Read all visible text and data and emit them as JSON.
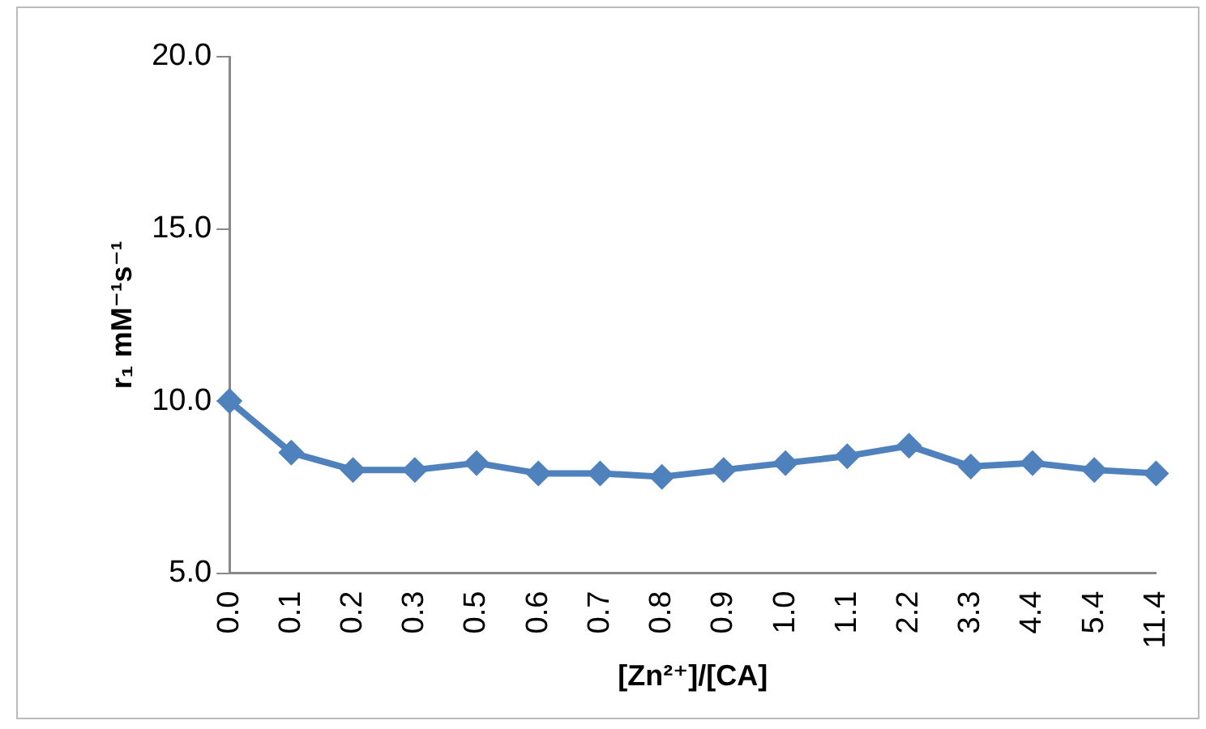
{
  "chart_data": {
    "type": "line",
    "xlabel": "[Zn²⁺]/[CA]",
    "ylabel": "r₁ mM⁻¹s⁻¹",
    "categories": [
      "0.0",
      "0.1",
      "0.2",
      "0.3",
      "0.5",
      "0.6",
      "0.7",
      "0.8",
      "0.9",
      "1.0",
      "1.1",
      "2.2",
      "3.3",
      "4.4",
      "5.4",
      "11.4"
    ],
    "series": [
      {
        "color": "#4f81bd",
        "values": [
          10.0,
          8.5,
          8.0,
          8.0,
          8.2,
          7.9,
          7.9,
          7.8,
          8.0,
          8.2,
          8.4,
          8.7,
          8.1,
          8.2,
          8.0,
          7.9
        ]
      }
    ],
    "ylim": [
      5,
      20
    ],
    "yticks": [
      {
        "value": 5,
        "label": "5.0"
      },
      {
        "value": 10,
        "label": "10.0"
      },
      {
        "value": 15,
        "label": "15.0"
      },
      {
        "value": 20,
        "label": "20.0"
      }
    ],
    "grid": false,
    "legend": false,
    "marker": "diamond",
    "line_style": "solid"
  }
}
